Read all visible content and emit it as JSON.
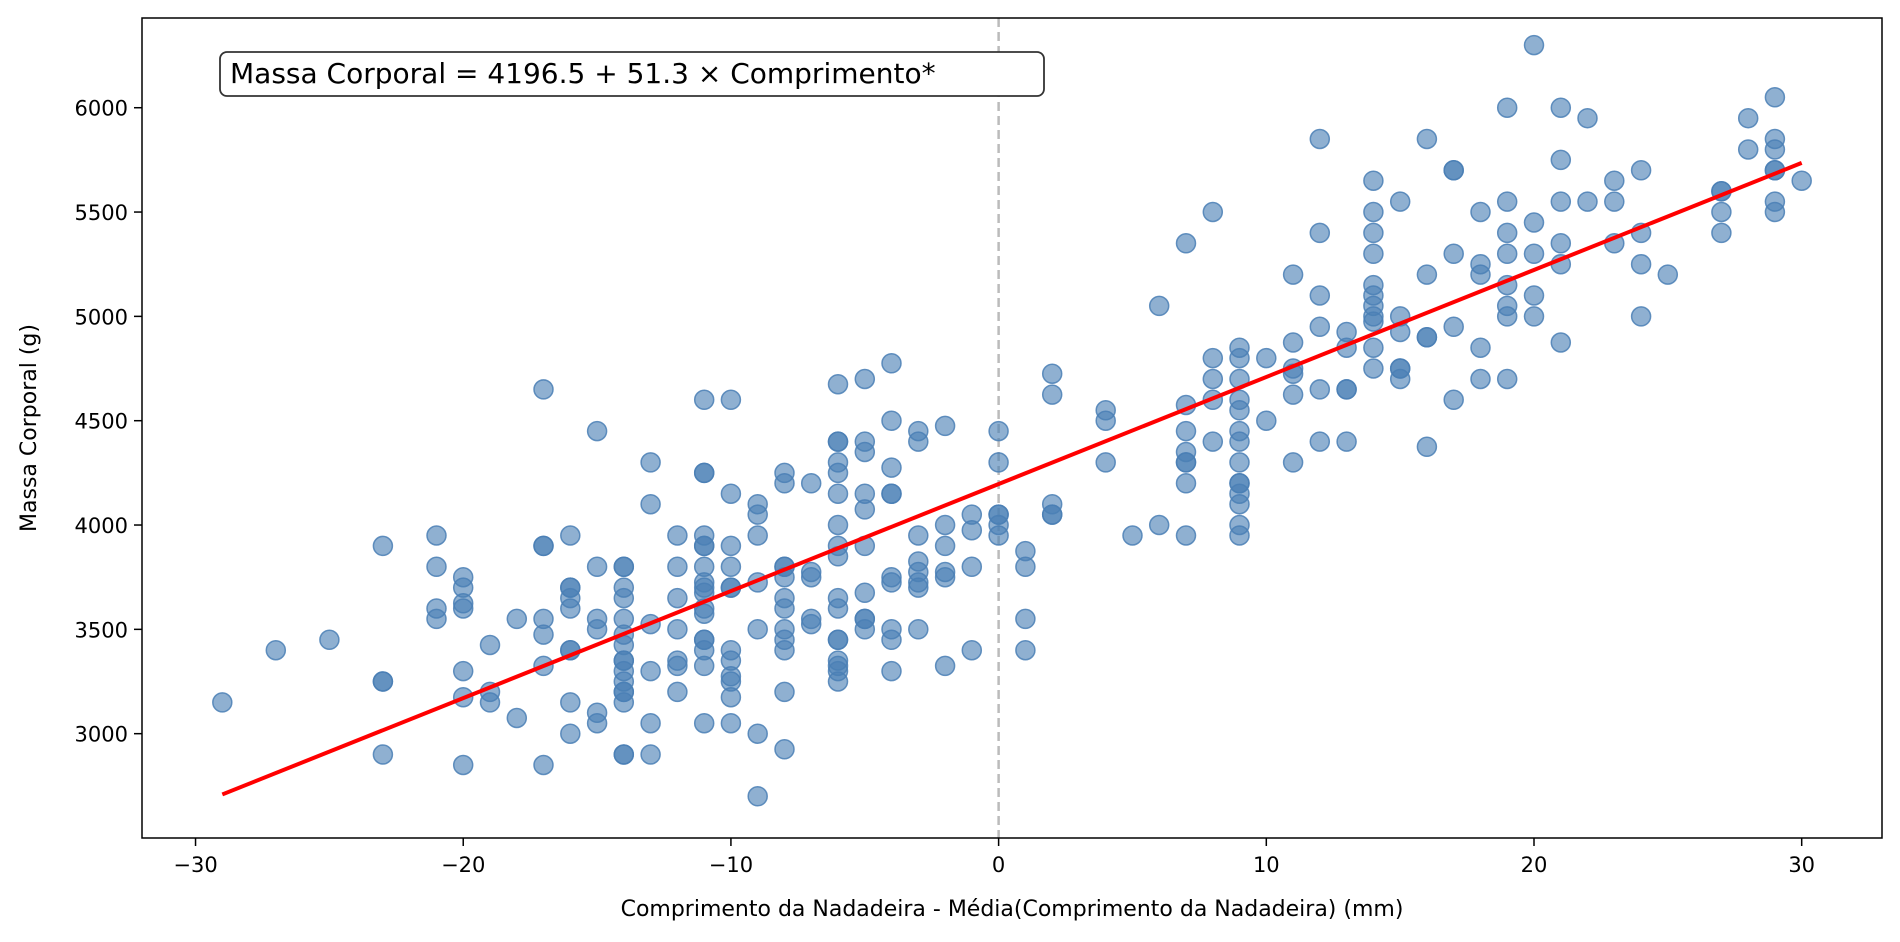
{
  "chart_data": {
    "type": "scatter",
    "title": "",
    "xlabel": "Comprimento da Nadadeira - Média(Comprimento da Nadadeira) (mm)",
    "ylabel": "Massa Corporal (g)",
    "xlim": [
      -32,
      33
    ],
    "ylim": [
      2500,
      6430
    ],
    "xticks": [
      -30,
      -20,
      -10,
      0,
      10,
      20,
      30
    ],
    "xtick_labels": [
      "−30",
      "−20",
      "−10",
      "0",
      "10",
      "20",
      "30"
    ],
    "yticks": [
      3000,
      3500,
      4000,
      4500,
      5000,
      5500,
      6000
    ],
    "ytick_labels": [
      "3000",
      "3500",
      "4000",
      "4500",
      "5000",
      "5500",
      "6000"
    ],
    "grid": false,
    "annotation": "Massa Corporal = 4196.5 + 51.3 × Comprimento*",
    "point_color": "#4a7fb5",
    "line_color": "#ff0000",
    "reference_line": {
      "x": 0,
      "color": "#bbbbbb",
      "style": "dashed"
    },
    "regression": {
      "intercept": 4196.5,
      "slope": 51.3,
      "x_range": [
        -29,
        30
      ]
    },
    "points": [
      [
        -29,
        3150
      ],
      [
        -27,
        3400
      ],
      [
        -25,
        3450
      ],
      [
        -23,
        3900
      ],
      [
        -23,
        3250
      ],
      [
        -23,
        3250
      ],
      [
        -23,
        2900
      ],
      [
        -21,
        3950
      ],
      [
        -21,
        3800
      ],
      [
        -21,
        3600
      ],
      [
        -21,
        3550
      ],
      [
        -20,
        3750
      ],
      [
        -20,
        3700
      ],
      [
        -20,
        3625
      ],
      [
        -20,
        3600
      ],
      [
        -20,
        3300
      ],
      [
        -20,
        3175
      ],
      [
        -20,
        2850
      ],
      [
        -19,
        3425
      ],
      [
        -19,
        3200
      ],
      [
        -19,
        3150
      ],
      [
        -18,
        3550
      ],
      [
        -18,
        3075
      ],
      [
        -17,
        4650
      ],
      [
        -17,
        3900
      ],
      [
        -17,
        3900
      ],
      [
        -17,
        3550
      ],
      [
        -17,
        3475
      ],
      [
        -17,
        3325
      ],
      [
        -17,
        2850
      ],
      [
        -16,
        3950
      ],
      [
        -16,
        3700
      ],
      [
        -16,
        3700
      ],
      [
        -16,
        3650
      ],
      [
        -16,
        3600
      ],
      [
        -16,
        3400
      ],
      [
        -16,
        3400
      ],
      [
        -16,
        3150
      ],
      [
        -16,
        3000
      ],
      [
        -15,
        4450
      ],
      [
        -15,
        3800
      ],
      [
        -15,
        3550
      ],
      [
        -15,
        3500
      ],
      [
        -15,
        3100
      ],
      [
        -15,
        3050
      ],
      [
        -14,
        3800
      ],
      [
        -14,
        3800
      ],
      [
        -14,
        3700
      ],
      [
        -14,
        3650
      ],
      [
        -14,
        3550
      ],
      [
        -14,
        3475
      ],
      [
        -14,
        3425
      ],
      [
        -14,
        3350
      ],
      [
        -14,
        3350
      ],
      [
        -14,
        3300
      ],
      [
        -14,
        3250
      ],
      [
        -14,
        3200
      ],
      [
        -14,
        3200
      ],
      [
        -14,
        3150
      ],
      [
        -14,
        2900
      ],
      [
        -14,
        2900
      ],
      [
        -13,
        4300
      ],
      [
        -13,
        4100
      ],
      [
        -13,
        3525
      ],
      [
        -13,
        3300
      ],
      [
        -13,
        3050
      ],
      [
        -13,
        2900
      ],
      [
        -12,
        3950
      ],
      [
        -12,
        3800
      ],
      [
        -12,
        3650
      ],
      [
        -12,
        3500
      ],
      [
        -12,
        3350
      ],
      [
        -12,
        3325
      ],
      [
        -12,
        3200
      ],
      [
        -11,
        4600
      ],
      [
        -11,
        4250
      ],
      [
        -11,
        4250
      ],
      [
        -11,
        3950
      ],
      [
        -11,
        3900
      ],
      [
        -11,
        3900
      ],
      [
        -11,
        3800
      ],
      [
        -11,
        3725
      ],
      [
        -11,
        3700
      ],
      [
        -11,
        3675
      ],
      [
        -11,
        3600
      ],
      [
        -11,
        3575
      ],
      [
        -11,
        3450
      ],
      [
        -11,
        3450
      ],
      [
        -11,
        3400
      ],
      [
        -11,
        3325
      ],
      [
        -11,
        3050
      ],
      [
        -10,
        4600
      ],
      [
        -10,
        4150
      ],
      [
        -10,
        3900
      ],
      [
        -10,
        3800
      ],
      [
        -10,
        3700
      ],
      [
        -10,
        3700
      ],
      [
        -10,
        3400
      ],
      [
        -10,
        3350
      ],
      [
        -10,
        3275
      ],
      [
        -10,
        3250
      ],
      [
        -10,
        3175
      ],
      [
        -10,
        3050
      ],
      [
        -9,
        4100
      ],
      [
        -9,
        4050
      ],
      [
        -9,
        3950
      ],
      [
        -9,
        3725
      ],
      [
        -9,
        3500
      ],
      [
        -9,
        3000
      ],
      [
        -9,
        2700
      ],
      [
        -8,
        4250
      ],
      [
        -8,
        4200
      ],
      [
        -8,
        3800
      ],
      [
        -8,
        3800
      ],
      [
        -8,
        3750
      ],
      [
        -8,
        3650
      ],
      [
        -8,
        3600
      ],
      [
        -8,
        3500
      ],
      [
        -8,
        3450
      ],
      [
        -8,
        3400
      ],
      [
        -8,
        3200
      ],
      [
        -8,
        2925
      ],
      [
        -7,
        4200
      ],
      [
        -7,
        3775
      ],
      [
        -7,
        3750
      ],
      [
        -7,
        3550
      ],
      [
        -7,
        3525
      ],
      [
        -6,
        4675
      ],
      [
        -6,
        4400
      ],
      [
        -6,
        4400
      ],
      [
        -6,
        4300
      ],
      [
        -6,
        4250
      ],
      [
        -6,
        4150
      ],
      [
        -6,
        4000
      ],
      [
        -6,
        3900
      ],
      [
        -6,
        3850
      ],
      [
        -6,
        3650
      ],
      [
        -6,
        3600
      ],
      [
        -6,
        3450
      ],
      [
        -6,
        3450
      ],
      [
        -6,
        3350
      ],
      [
        -6,
        3325
      ],
      [
        -6,
        3300
      ],
      [
        -6,
        3250
      ],
      [
        -5,
        4700
      ],
      [
        -5,
        4400
      ],
      [
        -5,
        4350
      ],
      [
        -5,
        4150
      ],
      [
        -5,
        4075
      ],
      [
        -5,
        3900
      ],
      [
        -5,
        3675
      ],
      [
        -5,
        3550
      ],
      [
        -5,
        3550
      ],
      [
        -5,
        3500
      ],
      [
        -4,
        4775
      ],
      [
        -4,
        4500
      ],
      [
        -4,
        4275
      ],
      [
        -4,
        4150
      ],
      [
        -4,
        4150
      ],
      [
        -4,
        3750
      ],
      [
        -4,
        3725
      ],
      [
        -4,
        3500
      ],
      [
        -4,
        3450
      ],
      [
        -4,
        3300
      ],
      [
        -3,
        4450
      ],
      [
        -3,
        4400
      ],
      [
        -3,
        3950
      ],
      [
        -3,
        3825
      ],
      [
        -3,
        3775
      ],
      [
        -3,
        3725
      ],
      [
        -3,
        3700
      ],
      [
        -3,
        3500
      ],
      [
        -2,
        4475
      ],
      [
        -2,
        4000
      ],
      [
        -2,
        3900
      ],
      [
        -2,
        3775
      ],
      [
        -2,
        3750
      ],
      [
        -2,
        3325
      ],
      [
        -1,
        4050
      ],
      [
        -1,
        3975
      ],
      [
        -1,
        3800
      ],
      [
        -1,
        3400
      ],
      [
        0,
        4450
      ],
      [
        0,
        4300
      ],
      [
        0,
        4050
      ],
      [
        0,
        4050
      ],
      [
        0,
        4000
      ],
      [
        0,
        3950
      ],
      [
        1,
        3875
      ],
      [
        1,
        3800
      ],
      [
        1,
        3550
      ],
      [
        1,
        3400
      ],
      [
        2,
        4725
      ],
      [
        2,
        4625
      ],
      [
        2,
        4100
      ],
      [
        2,
        4050
      ],
      [
        2,
        4050
      ],
      [
        4,
        4550
      ],
      [
        4,
        4500
      ],
      [
        4,
        4300
      ],
      [
        5,
        3950
      ],
      [
        6,
        5050
      ],
      [
        6,
        4000
      ],
      [
        7,
        5350
      ],
      [
        7,
        4575
      ],
      [
        7,
        4450
      ],
      [
        7,
        4350
      ],
      [
        7,
        4300
      ],
      [
        7,
        4300
      ],
      [
        7,
        4200
      ],
      [
        7,
        3950
      ],
      [
        8,
        5500
      ],
      [
        8,
        4800
      ],
      [
        8,
        4700
      ],
      [
        8,
        4600
      ],
      [
        8,
        4400
      ],
      [
        9,
        4850
      ],
      [
        9,
        4800
      ],
      [
        9,
        4700
      ],
      [
        9,
        4600
      ],
      [
        9,
        4550
      ],
      [
        9,
        4450
      ],
      [
        9,
        4400
      ],
      [
        9,
        4300
      ],
      [
        9,
        4200
      ],
      [
        9,
        4200
      ],
      [
        9,
        4150
      ],
      [
        9,
        4100
      ],
      [
        9,
        4000
      ],
      [
        9,
        3950
      ],
      [
        10,
        4800
      ],
      [
        10,
        4500
      ],
      [
        11,
        5200
      ],
      [
        11,
        4875
      ],
      [
        11,
        4750
      ],
      [
        11,
        4725
      ],
      [
        11,
        4625
      ],
      [
        11,
        4300
      ],
      [
        12,
        5850
      ],
      [
        12,
        5400
      ],
      [
        12,
        5100
      ],
      [
        12,
        4950
      ],
      [
        12,
        4650
      ],
      [
        12,
        4400
      ],
      [
        13,
        4925
      ],
      [
        13,
        4850
      ],
      [
        13,
        4650
      ],
      [
        13,
        4650
      ],
      [
        13,
        4400
      ],
      [
        14,
        5650
      ],
      [
        14,
        5500
      ],
      [
        14,
        5400
      ],
      [
        14,
        5300
      ],
      [
        14,
        5150
      ],
      [
        14,
        5100
      ],
      [
        14,
        5050
      ],
      [
        14,
        5000
      ],
      [
        14,
        4975
      ],
      [
        14,
        4850
      ],
      [
        14,
        4750
      ],
      [
        15,
        5550
      ],
      [
        15,
        5000
      ],
      [
        15,
        4925
      ],
      [
        15,
        4750
      ],
      [
        15,
        4750
      ],
      [
        15,
        4700
      ],
      [
        16,
        5850
      ],
      [
        16,
        5200
      ],
      [
        16,
        4900
      ],
      [
        16,
        4900
      ],
      [
        16,
        4375
      ],
      [
        17,
        5700
      ],
      [
        17,
        5700
      ],
      [
        17,
        5300
      ],
      [
        17,
        4950
      ],
      [
        17,
        4600
      ],
      [
        18,
        5500
      ],
      [
        18,
        5250
      ],
      [
        18,
        5200
      ],
      [
        18,
        4850
      ],
      [
        18,
        4700
      ],
      [
        19,
        6000
      ],
      [
        19,
        5550
      ],
      [
        19,
        5400
      ],
      [
        19,
        5300
      ],
      [
        19,
        5150
      ],
      [
        19,
        5050
      ],
      [
        19,
        5000
      ],
      [
        19,
        4700
      ],
      [
        20,
        6300
      ],
      [
        20,
        5450
      ],
      [
        20,
        5300
      ],
      [
        20,
        5100
      ],
      [
        20,
        5000
      ],
      [
        21,
        6000
      ],
      [
        21,
        5750
      ],
      [
        21,
        5550
      ],
      [
        21,
        5350
      ],
      [
        21,
        5250
      ],
      [
        21,
        4875
      ],
      [
        22,
        5950
      ],
      [
        22,
        5550
      ],
      [
        23,
        5650
      ],
      [
        23,
        5550
      ],
      [
        23,
        5350
      ],
      [
        24,
        5700
      ],
      [
        24,
        5400
      ],
      [
        24,
        5250
      ],
      [
        24,
        5000
      ],
      [
        25,
        5200
      ],
      [
        27,
        5600
      ],
      [
        27,
        5600
      ],
      [
        27,
        5500
      ],
      [
        27,
        5400
      ],
      [
        28,
        5950
      ],
      [
        28,
        5800
      ],
      [
        29,
        6050
      ],
      [
        29,
        5850
      ],
      [
        29,
        5800
      ],
      [
        29,
        5700
      ],
      [
        29,
        5700
      ],
      [
        29,
        5550
      ],
      [
        29,
        5500
      ],
      [
        30,
        5650
      ]
    ]
  }
}
